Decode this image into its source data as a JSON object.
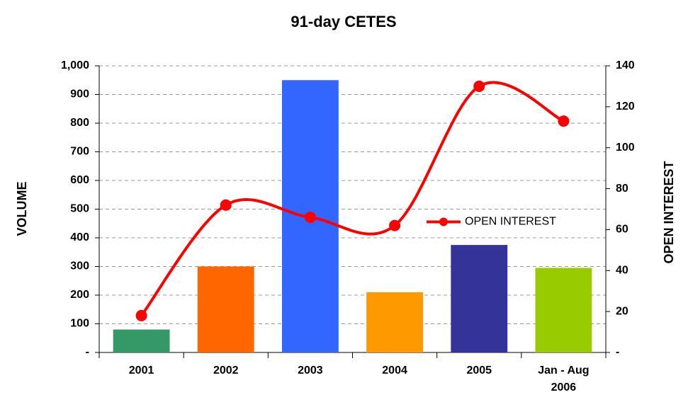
{
  "chart_data": {
    "type": "bar",
    "title": "91-day CETES",
    "categories": [
      "2001",
      "2002",
      "2003",
      "2004",
      "2005",
      "Jan - Aug 2006"
    ],
    "values": [
      80,
      300,
      950,
      210,
      375,
      295
    ],
    "colors": [
      "#339966",
      "#ff6600",
      "#3366ff",
      "#ff9900",
      "#333399",
      "#99cc00"
    ],
    "series": [
      {
        "name": "OPEN INTEREST",
        "color": "#ff0000",
        "axis": "y2",
        "type": "line",
        "smooth": true,
        "values": [
          18,
          72,
          66,
          62,
          130,
          113
        ]
      }
    ],
    "ylabel": "VOLUME",
    "y2label": "OPEN INTEREST",
    "ylim": [
      0,
      1000
    ],
    "yticks": [
      {
        "value": 0,
        "label": "-"
      },
      100,
      200,
      300,
      400,
      500,
      600,
      700,
      800,
      900,
      {
        "value": 1000,
        "label": "1,000"
      }
    ],
    "y2lim": [
      0,
      140
    ],
    "y2ticks": [
      {
        "value": 0,
        "label": "-"
      },
      20,
      40,
      60,
      80,
      100,
      120,
      140
    ],
    "grid": true,
    "legend": "center-right"
  }
}
